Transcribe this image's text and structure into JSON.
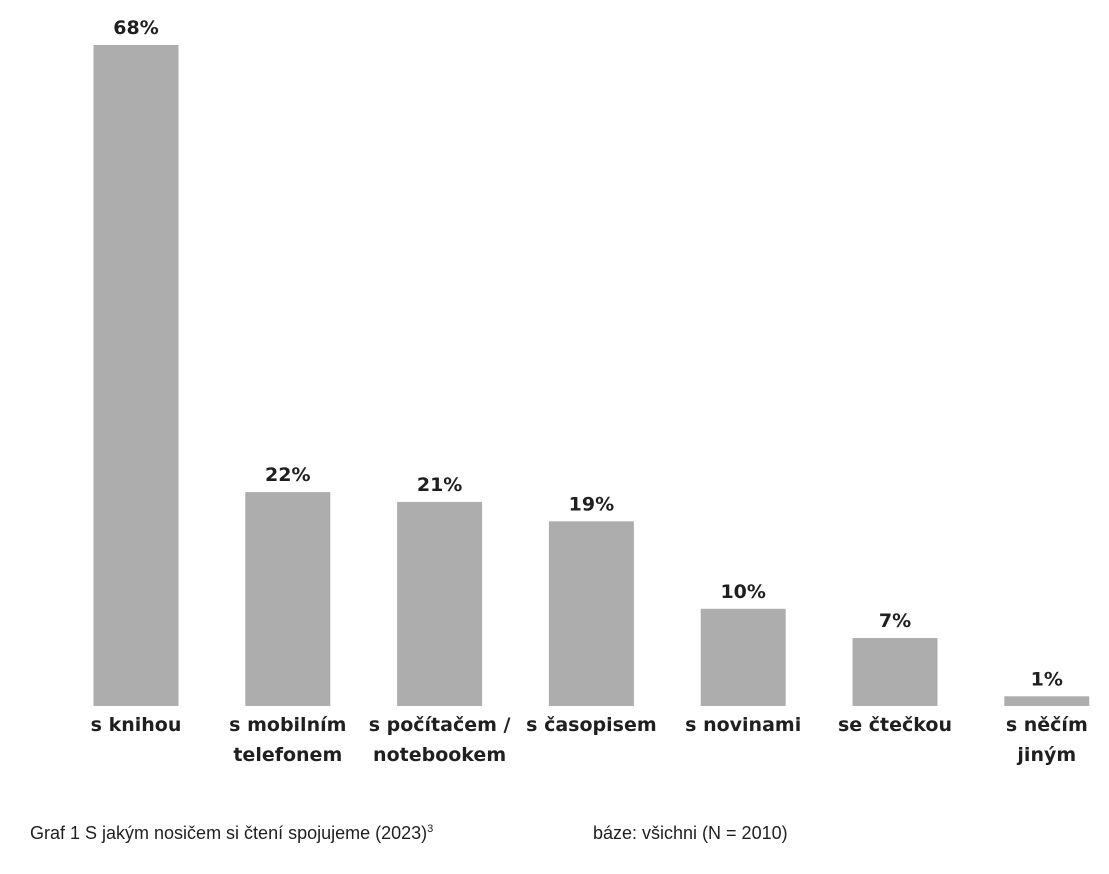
{
  "chart_data": {
    "type": "bar",
    "categories": [
      [
        "s knihou"
      ],
      [
        "s mobilním",
        "telefonem"
      ],
      [
        "s počítačem /",
        "notebookem"
      ],
      [
        "s časopisem"
      ],
      [
        "s novinami"
      ],
      [
        "se čtečkou"
      ],
      [
        "s něčím",
        "jiným"
      ]
    ],
    "values": [
      68,
      22,
      21,
      19,
      10,
      7,
      1
    ],
    "value_labels": [
      "68%",
      "22%",
      "21%",
      "19%",
      "10%",
      "7%",
      "1%"
    ],
    "unit": "%",
    "bar_color": "#adadad",
    "text_color": "#1f1f1f",
    "ylim": [
      0,
      68
    ],
    "grid": false,
    "legend": "none"
  },
  "caption": {
    "title": "Graf 1 S jakým nosičem si čtení spojujeme (2023)",
    "footnote": "3",
    "base": "báze: všichni (N = 2010)"
  }
}
